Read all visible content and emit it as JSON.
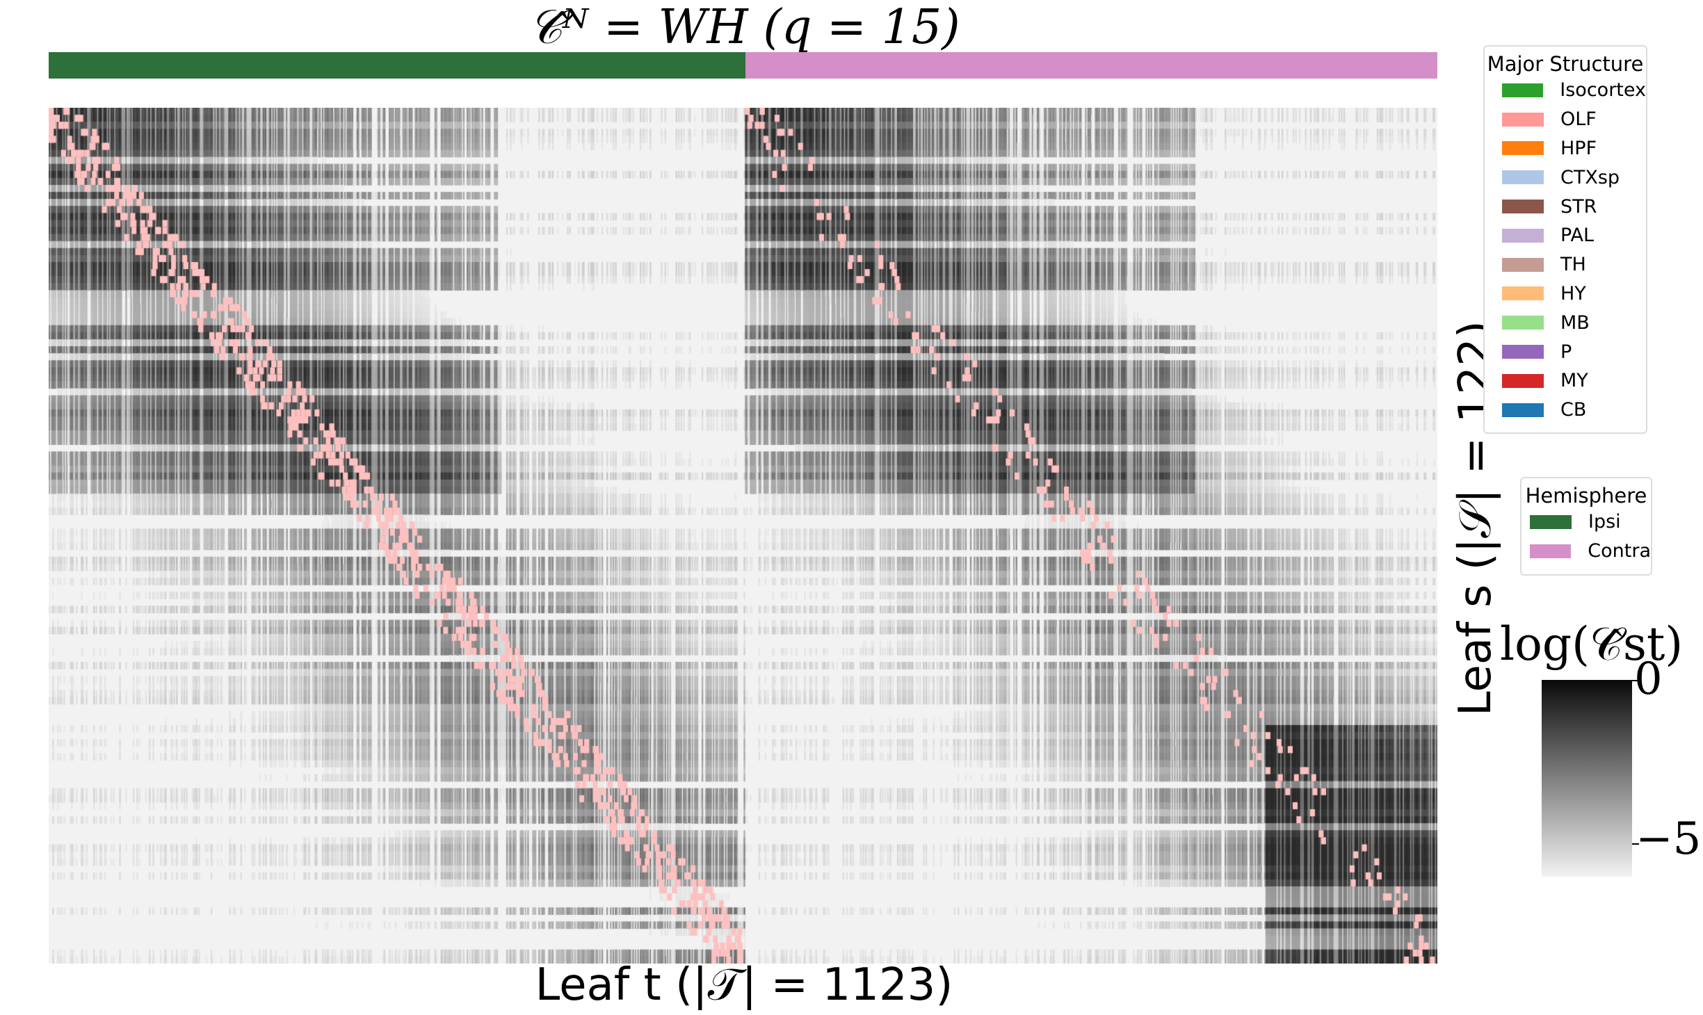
{
  "chart_data": {
    "type": "heatmap",
    "title": "𝒞̂ᴺ = WH (q = 15)",
    "xlabel": "Leaf t (|𝒯| = 1123)",
    "ylabel": "Leaf s (|𝒮| = 122)",
    "n_rows": 122,
    "n_cols": 1123,
    "color_scale": {
      "label": "log(𝒞̂st)",
      "min": -5,
      "max": 0,
      "low_color": "#f2f2f2",
      "high_color": "#0a0a0a"
    },
    "colorbar_ticks": [
      "0",
      "−5"
    ],
    "highlight_color": "#ffc0c0",
    "hemisphere_bar": [
      {
        "name": "Ipsi",
        "fraction": 0.502,
        "color": "#2d703a"
      },
      {
        "name": "Contra",
        "fraction": 0.498,
        "color": "#d48fc8"
      }
    ]
  },
  "legends": {
    "major_structure": {
      "title": "Major Structure",
      "items": [
        {
          "label": "Isocortex",
          "color": "#2ca02c"
        },
        {
          "label": "OLF",
          "color": "#ff9896"
        },
        {
          "label": "HPF",
          "color": "#ff7f0e"
        },
        {
          "label": "CTXsp",
          "color": "#aec7e8"
        },
        {
          "label": "STR",
          "color": "#8c564b"
        },
        {
          "label": "PAL",
          "color": "#c5b0d5"
        },
        {
          "label": "TH",
          "color": "#c49c94"
        },
        {
          "label": "HY",
          "color": "#ffbb78"
        },
        {
          "label": "MB",
          "color": "#98df8a"
        },
        {
          "label": "P",
          "color": "#9467bd"
        },
        {
          "label": "MY",
          "color": "#d62728"
        },
        {
          "label": "CB",
          "color": "#1f77b4"
        }
      ]
    },
    "hemisphere": {
      "title": "Hemisphere",
      "items": [
        {
          "label": "Ipsi",
          "color": "#2d703a"
        },
        {
          "label": "Contra",
          "color": "#d48fc8"
        }
      ]
    }
  }
}
